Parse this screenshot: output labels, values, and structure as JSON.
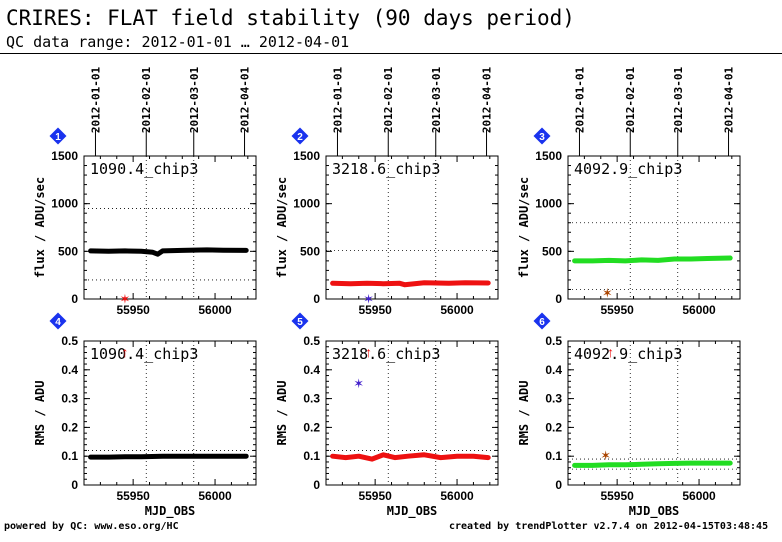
{
  "header": {
    "title": "CRIRES: FLAT field stability (90 days period)",
    "subtitle": "QC data range: 2012-01-01 … 2012-04-01"
  },
  "footer": {
    "left": "powered by QC: www.eso.org/HC",
    "right": "created by trendPlotter v2.7.4 on 2012-04-15T03:48:45"
  },
  "colors": {
    "black": "#000000",
    "red": "#ee1111",
    "green": "#22dd22",
    "purple": "#4422cc",
    "brown": "#aa4400",
    "badge": "#1a33ee"
  },
  "chart_data": {
    "top_axis_dates": [
      "2012-01-01",
      "2012-02-01",
      "2012-03-01",
      "2012-04-01"
    ],
    "top_axis_mjd": [
      55927,
      55958,
      55987,
      56018
    ],
    "x_ticks": [
      55950,
      56000
    ],
    "xlabel": "MJD_OBS",
    "xlim": [
      55920,
      56025
    ],
    "panels": [
      {
        "badge": "1",
        "label": "1090.4_chip3",
        "type": "line",
        "ylabel": "flux / ADU/sec",
        "ylim": [
          0,
          1500
        ],
        "yticks": [
          0,
          500,
          1000,
          1500
        ],
        "yticklabels": [
          "0",
          "500",
          "1000",
          "1500"
        ],
        "ref_lines": [
          200,
          950
        ],
        "color": "#000000",
        "series": {
          "x": [
            55924,
            55935,
            55945,
            55955,
            55962,
            55965,
            55968,
            55980,
            55995,
            56005,
            56019
          ],
          "y": [
            505,
            500,
            505,
            500,
            490,
            470,
            505,
            510,
            515,
            512,
            510
          ]
        },
        "markers": [
          {
            "x": 55945,
            "y": 5,
            "symbol": "✶",
            "color": "#ee1111"
          }
        ]
      },
      {
        "badge": "2",
        "label": "3218.6_chip3",
        "type": "line",
        "ylabel": "flux / ADU/sec",
        "ylim": [
          0,
          1500
        ],
        "yticks": [
          0,
          500,
          1000,
          1500
        ],
        "yticklabels": [
          "0",
          "500",
          "1000",
          "1500"
        ],
        "ref_lines": [
          510
        ],
        "color": "#ee1111",
        "series": {
          "x": [
            55924,
            55935,
            55945,
            55955,
            55965,
            55968,
            55980,
            55995,
            56005,
            56019
          ],
          "y": [
            165,
            160,
            165,
            160,
            165,
            150,
            170,
            165,
            170,
            168
          ]
        },
        "markers": [
          {
            "x": 55946,
            "y": 5,
            "symbol": "✶",
            "color": "#4422cc"
          }
        ]
      },
      {
        "badge": "3",
        "label": "4092.9_chip3",
        "type": "line",
        "ylabel": "flux / ADU/sec",
        "ylim": [
          0,
          1500
        ],
        "yticks": [
          0,
          500,
          1000,
          1500
        ],
        "yticklabels": [
          "0",
          "500",
          "1000",
          "1500"
        ],
        "ref_lines": [
          100,
          800
        ],
        "color": "#22dd22",
        "series": {
          "x": [
            55924,
            55935,
            55945,
            55955,
            55965,
            55975,
            55985,
            55995,
            56005,
            56019
          ],
          "y": [
            400,
            400,
            405,
            400,
            410,
            405,
            420,
            420,
            425,
            430
          ]
        },
        "markers": [
          {
            "x": 55944,
            "y": 70,
            "symbol": "✶",
            "color": "#aa4400"
          }
        ]
      },
      {
        "badge": "4",
        "label": "1090.4_chip3",
        "type": "line",
        "ylabel": "RMS / ADU",
        "ylim": [
          0,
          0.5
        ],
        "yticks": [
          0,
          0.1,
          0.2,
          0.3,
          0.4,
          0.5
        ],
        "yticklabels": [
          "0",
          "0.1",
          "0.2",
          "0.3",
          "0.4",
          "0.5"
        ],
        "ref_lines": [
          0.12
        ],
        "color": "#000000",
        "series": {
          "x": [
            55924,
            55935,
            55945,
            55955,
            55968,
            55980,
            55995,
            56005,
            56019
          ],
          "y": [
            0.097,
            0.097,
            0.098,
            0.098,
            0.1,
            0.1,
            0.1,
            0.1,
            0.1
          ]
        },
        "markers": [
          {
            "x": 55945,
            "y": 0.5,
            "symbol": "↑",
            "color": "#ee1111"
          }
        ]
      },
      {
        "badge": "5",
        "label": "3218.6_chip3",
        "type": "line",
        "ylabel": "RMS / ADU",
        "ylim": [
          0,
          0.5
        ],
        "yticks": [
          0,
          0.1,
          0.2,
          0.3,
          0.4,
          0.5
        ],
        "yticklabels": [
          "0",
          "0.1",
          "0.2",
          "0.3",
          "0.4",
          "0.5"
        ],
        "ref_lines": [
          0.12
        ],
        "color": "#ee1111",
        "series": {
          "x": [
            55924,
            55932,
            55940,
            55948,
            55955,
            55962,
            55970,
            55980,
            55990,
            56000,
            56010,
            56019
          ],
          "y": [
            0.1,
            0.095,
            0.1,
            0.09,
            0.105,
            0.095,
            0.1,
            0.105,
            0.095,
            0.1,
            0.1,
            0.095
          ]
        },
        "markers": [
          {
            "x": 55940,
            "y": 0.355,
            "symbol": "✶",
            "color": "#4422cc"
          },
          {
            "x": 55946,
            "y": 0.5,
            "symbol": "↑",
            "color": "#ee1111"
          }
        ]
      },
      {
        "badge": "6",
        "label": "4092.9_chip3",
        "type": "line",
        "ylabel": "RMS / ADU",
        "ylim": [
          0,
          0.5
        ],
        "yticks": [
          0,
          0.1,
          0.2,
          0.3,
          0.4,
          0.5
        ],
        "yticklabels": [
          "0",
          "0.1",
          "0.2",
          "0.3",
          "0.4",
          "0.5"
        ],
        "ref_lines": [
          0.055,
          0.09
        ],
        "color": "#22dd22",
        "series": {
          "x": [
            55924,
            55935,
            55945,
            55955,
            55965,
            55975,
            55985,
            55995,
            56005,
            56019
          ],
          "y": [
            0.068,
            0.068,
            0.07,
            0.07,
            0.072,
            0.074,
            0.075,
            0.076,
            0.076,
            0.076
          ]
        },
        "markers": [
          {
            "x": 55943,
            "y": 0.105,
            "symbol": "✶",
            "color": "#aa4400"
          },
          {
            "x": 55946,
            "y": 0.5,
            "symbol": "↑",
            "color": "#ee1111"
          }
        ]
      }
    ]
  }
}
